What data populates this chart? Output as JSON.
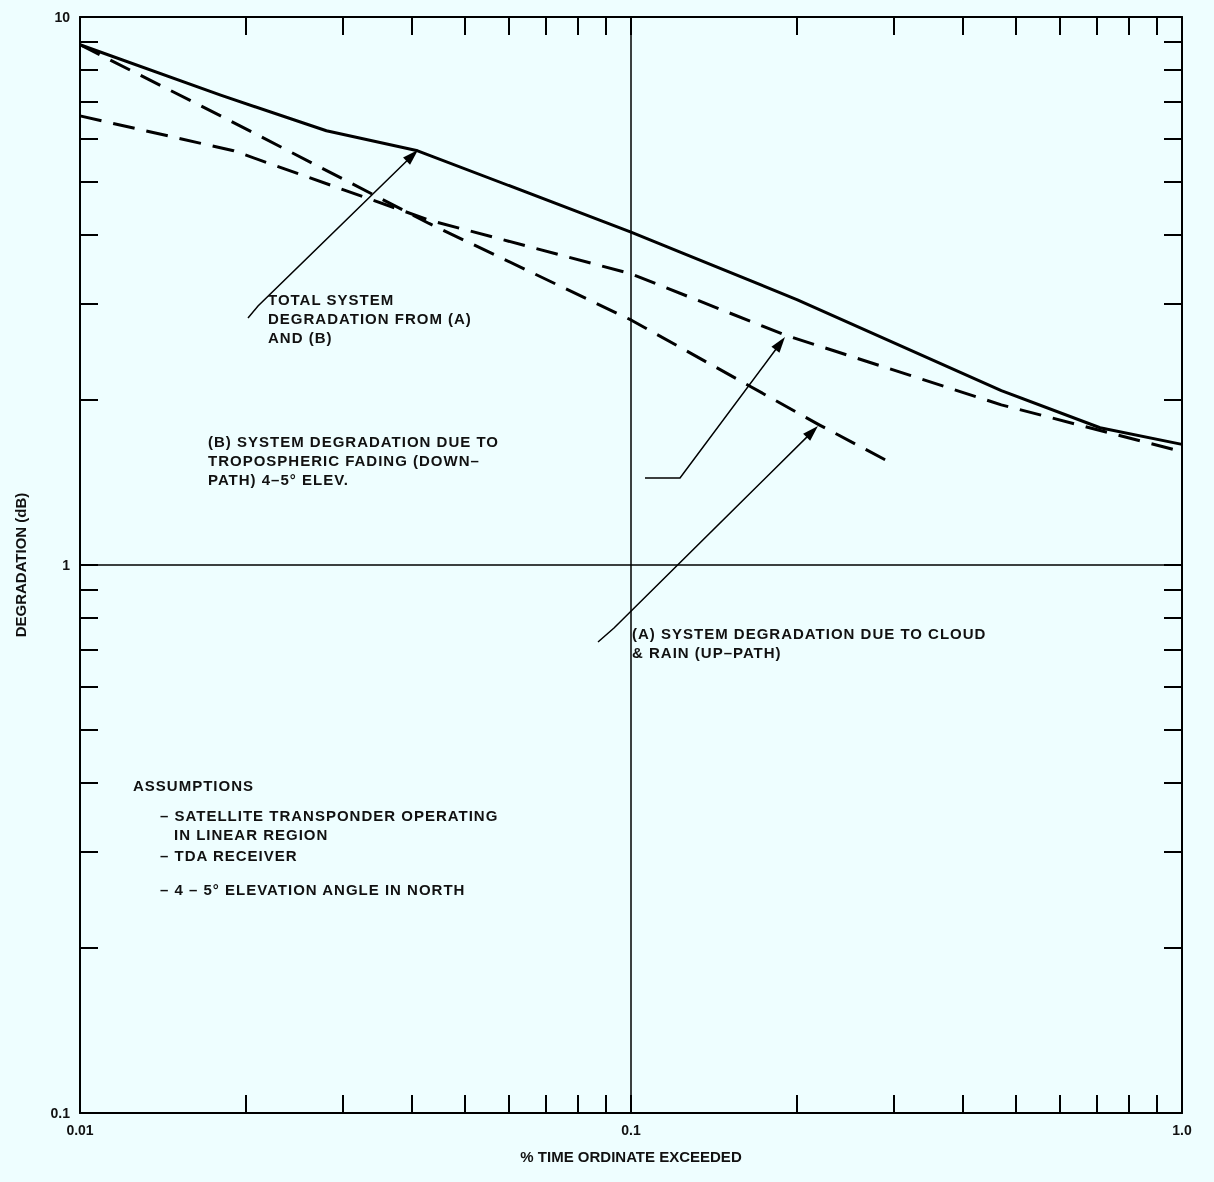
{
  "chart_data": {
    "type": "line",
    "xlabel": "% TIME ORDINATE EXCEEDED",
    "ylabel": "DEGRADATION (dB)",
    "log": "xy",
    "grid": true,
    "marker": "none",
    "xlim": [
      0.01,
      1
    ],
    "ylim": [
      0.1,
      10
    ],
    "xticks": [
      {
        "value": 0.01,
        "label": "0.01"
      },
      {
        "value": 0.1,
        "label": "0.1"
      },
      {
        "value": 1,
        "label": "1.0"
      }
    ],
    "yticks": [
      {
        "value": 0.1,
        "label": "0.1"
      },
      1,
      10
    ],
    "series": [
      {
        "color": "#000000",
        "line_style": "solid",
        "x": [
          0.01,
          0.018,
          0.028,
          0.041,
          0.1,
          0.2,
          0.47,
          0.71,
          1
        ],
        "values": [
          8.9,
          7.2,
          6.2,
          5.7,
          4.05,
          3.05,
          2.08,
          1.78,
          1.66
        ]
      },
      {
        "color": "#000000",
        "line_style": "dashed",
        "x": [
          0.01,
          0.018,
          0.043,
          0.1,
          0.22,
          0.295
        ],
        "values": [
          8.9,
          6.6,
          4.2,
          2.8,
          1.8,
          1.54
        ]
      },
      {
        "color": "#000000",
        "line_style": "dashed",
        "x": [
          0.01,
          0.019,
          0.043,
          0.1,
          0.19,
          0.47,
          1
        ],
        "values": [
          6.6,
          5.7,
          4.26,
          3.4,
          2.63,
          1.96,
          1.61
        ]
      }
    ],
    "annotations": [
      "TOTAL SYSTEM DEGRADATION FROM (A) AND (B)",
      "(B) SYSTEM DEGRADATION DUE TO TROPOSPHERIC FADING (DOWN–PATH) 4–5° ELEV.",
      "(A) SYSTEM DEGRADATION DUE TO CLOUD & RAIN (UP–PATH)",
      "ASSUMPTIONS",
      "– SATELLITE TRANSPONDER OPERATING IN LINEAR REGION",
      "– TDA RECEIVER",
      "– 4 – 5° ELEVATION ANGLE IN NORTH"
    ]
  }
}
